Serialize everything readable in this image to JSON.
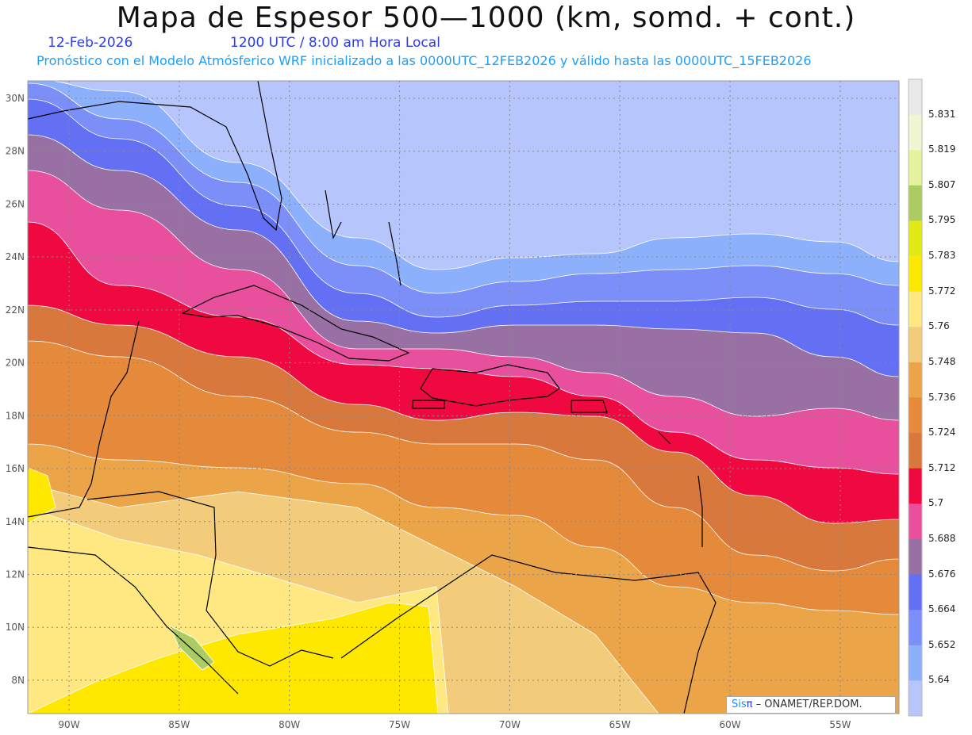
{
  "header": {
    "title": "Mapa de Espesor 500—1000 (km, somd. + cont.)",
    "date": "12-Feb-2026",
    "time": "1200 UTC / 8:00 am Hora Local",
    "forecast_note": "Pronóstico con el Modelo Atmósferico WRF inicializado a las 0000UTC_12FEB2026 y válido hasta las  0000UTC_15FEB2026"
  },
  "map": {
    "lon_labels": [
      "90W",
      "85W",
      "80W",
      "75W",
      "70W",
      "65W",
      "60W",
      "55W"
    ],
    "lat_labels": [
      "30N",
      "28N",
      "26N",
      "24N",
      "22N",
      "20N",
      "18N",
      "16N",
      "14N",
      "12N",
      "10N",
      "8N"
    ]
  },
  "legend": {
    "labels": [
      "5.831",
      "5.819",
      "5.807",
      "5.795",
      "5.783",
      "5.772",
      "5.76",
      "5.748",
      "5.736",
      "5.724",
      "5.712",
      "5.7",
      "5.688",
      "5.676",
      "5.664",
      "5.652",
      "5.64"
    ],
    "colors": [
      "#e8e8e8",
      "#f0f5d2",
      "#e6f29c",
      "#aacc62",
      "#e2ea16",
      "#ffe800",
      "#ffe882",
      "#f2cc7a",
      "#eca448",
      "#e48a3a",
      "#d8783c",
      "#f00840",
      "#e8509e",
      "#9870a4",
      "#6470f4",
      "#7c8ef8",
      "#8cb0fc",
      "#b6c6fc"
    ]
  },
  "credit": {
    "brand_a": "Sis",
    "brand_b": "π",
    "text": " – ONAMET/REP.DOM."
  }
}
